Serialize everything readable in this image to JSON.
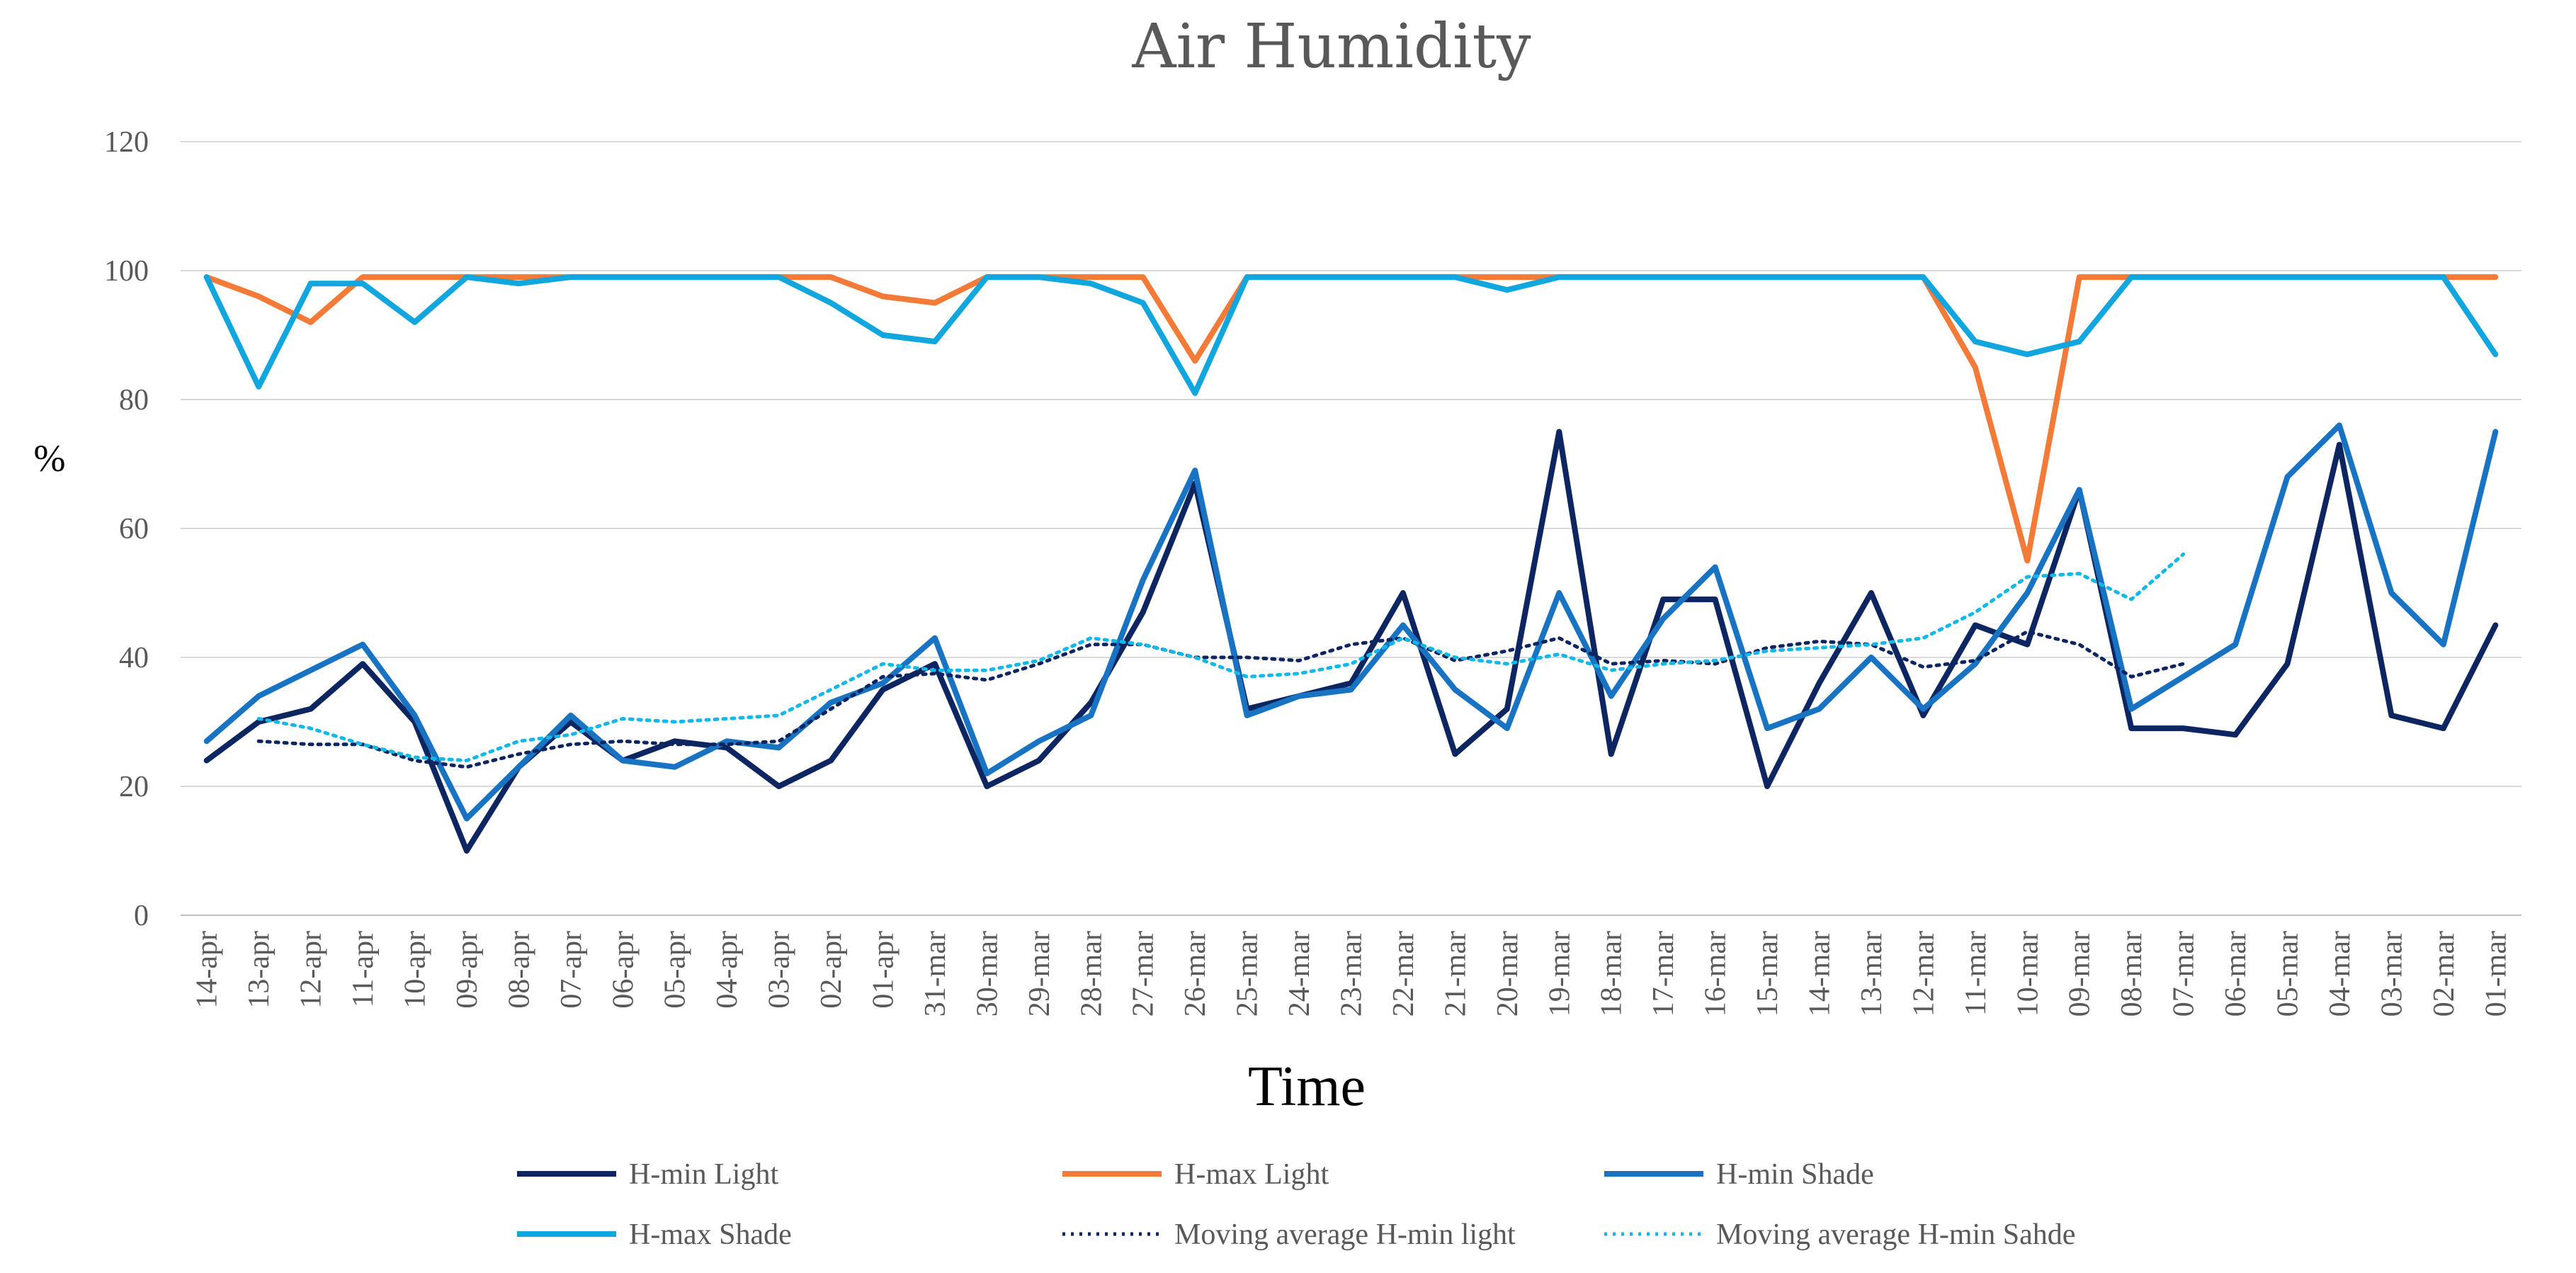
{
  "chart_data": {
    "type": "line",
    "title": "Air Humidity",
    "xlabel": "Time",
    "ylabel": "%",
    "ylim": [
      0,
      120
    ],
    "yticks": [
      0,
      20,
      40,
      60,
      80,
      100,
      120
    ],
    "grid": true,
    "legend_position": "bottom",
    "categories": [
      "14-apr",
      "13-apr",
      "12-apr",
      "11-apr",
      "10-apr",
      "09-apr",
      "08-apr",
      "07-apr",
      "06-apr",
      "05-apr",
      "04-apr",
      "03-apr",
      "02-apr",
      "01-apr",
      "31-mar",
      "30-mar",
      "29-mar",
      "28-mar",
      "27-mar",
      "26-mar",
      "25-mar",
      "24-mar",
      "23-mar",
      "22-mar",
      "21-mar",
      "20-mar",
      "19-mar",
      "18-mar",
      "17-mar",
      "16-mar",
      "15-mar",
      "14-mar",
      "13-mar",
      "12-mar",
      "11-mar",
      "10-mar",
      "09-mar",
      "08-mar",
      "07-mar",
      "06-mar",
      "05-mar",
      "04-mar",
      "03-mar",
      "02-mar",
      "01-mar"
    ],
    "series": [
      {
        "name": "H-min Light",
        "color": "#0d2560",
        "style": "solid",
        "values": [
          24,
          30,
          32,
          39,
          30,
          10,
          23,
          30,
          24,
          27,
          26,
          20,
          24,
          35,
          39,
          20,
          24,
          33,
          47,
          67,
          32,
          34,
          36,
          50,
          25,
          32,
          75,
          25,
          49,
          49,
          20,
          36,
          50,
          31,
          45,
          42,
          66,
          29,
          29,
          28,
          39,
          73,
          31,
          29,
          45
        ]
      },
      {
        "name": "H-max Light",
        "color": "#f47a38",
        "style": "solid",
        "values": [
          99,
          96,
          92,
          99,
          99,
          99,
          99,
          99,
          99,
          99,
          99,
          99,
          99,
          96,
          95,
          99,
          99,
          99,
          99,
          86,
          99,
          99,
          99,
          99,
          99,
          99,
          99,
          99,
          99,
          99,
          99,
          99,
          99,
          99,
          85,
          55,
          99,
          99,
          99,
          99,
          99,
          99,
          99,
          99,
          99
        ]
      },
      {
        "name": "H-min Shade",
        "color": "#1873c2",
        "style": "solid",
        "values": [
          27,
          34,
          38,
          42,
          31,
          15,
          23,
          31,
          24,
          23,
          27,
          26,
          33,
          36,
          43,
          22,
          27,
          31,
          52,
          69,
          31,
          34,
          35,
          45,
          35,
          29,
          50,
          34,
          46,
          54,
          29,
          32,
          40,
          32,
          39,
          50,
          66,
          32,
          37,
          42,
          68,
          76,
          50,
          42,
          75
        ]
      },
      {
        "name": "H-max Shade",
        "color": "#12a6de",
        "style": "solid",
        "values": [
          99,
          82,
          98,
          98,
          92,
          99,
          98,
          99,
          99,
          99,
          99,
          99,
          95,
          90,
          89,
          99,
          99,
          98,
          95,
          81,
          99,
          99,
          99,
          99,
          99,
          97,
          99,
          99,
          99,
          99,
          99,
          99,
          99,
          99,
          89,
          87,
          89,
          99,
          99,
          99,
          99,
          99,
          99,
          99,
          87
        ]
      },
      {
        "name": "Moving average H-min light",
        "color": "#0d2560",
        "style": "dotted",
        "values": [
          null,
          27,
          26.5,
          26.5,
          24,
          23,
          25,
          26.5,
          27,
          26.5,
          26.5,
          27,
          32,
          37,
          37.5,
          36.5,
          39,
          42,
          42,
          40,
          40,
          39.5,
          42,
          43,
          39.5,
          41,
          43,
          39,
          39.5,
          39,
          41.5,
          42.5,
          42,
          38.5,
          39.5,
          44,
          42,
          37,
          39,
          null,
          null,
          null,
          null,
          null,
          null
        ]
      },
      {
        "name": "Moving average H-min Sahde",
        "color": "#12b8e8",
        "style": "dotted",
        "values": [
          null,
          30.5,
          29,
          26.5,
          24.5,
          24,
          27,
          28,
          30.5,
          30,
          30.5,
          31,
          35,
          39,
          38,
          38,
          39.5,
          43,
          42,
          40,
          37,
          37.5,
          39,
          43,
          40,
          39,
          40.5,
          38,
          39,
          39.5,
          41,
          41.5,
          42,
          43,
          47,
          52.5,
          53,
          49,
          56,
          null,
          null,
          null,
          null,
          null,
          null
        ]
      }
    ]
  }
}
